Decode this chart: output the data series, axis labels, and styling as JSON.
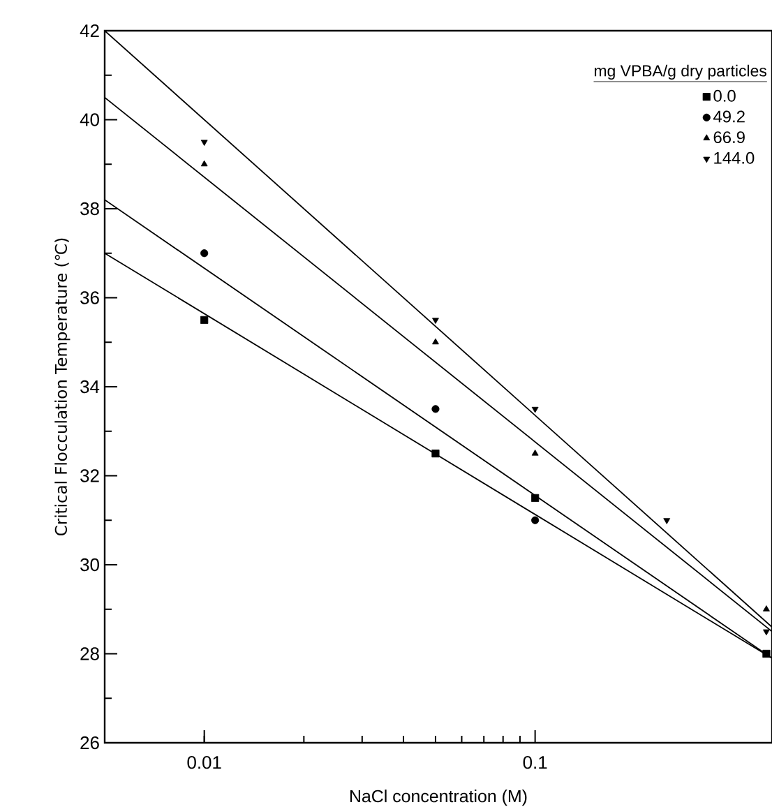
{
  "chart_data": {
    "type": "scatter",
    "xlabel": "NaCl concentration (M)",
    "ylabel": "Critical Flocculation Temperature (℃)",
    "legend_title": "mg VPBA/g dry particles",
    "log": "x",
    "xlim": [
      0.005,
      0.52
    ],
    "ylim": [
      26,
      42
    ],
    "xticks": [
      0.01,
      0.1
    ],
    "yticks": [
      26,
      28,
      30,
      32,
      34,
      36,
      38,
      40,
      42
    ],
    "grid": false,
    "legend": "top right",
    "series": [
      {
        "name": "0.0",
        "color": "#000000",
        "marker": "square",
        "x": [
          0.01,
          0.05,
          0.1,
          0.5
        ],
        "values": [
          35.5,
          32.5,
          31.5,
          28.0
        ]
      },
      {
        "name": "49.2",
        "color": "#000000",
        "marker": "circle",
        "x": [
          0.01,
          0.05,
          0.1
        ],
        "values": [
          37.0,
          33.5,
          31.0
        ]
      },
      {
        "name": "66.9",
        "color": "#000000",
        "marker": "triangle",
        "x": [
          0.01,
          0.05,
          0.1,
          0.5
        ],
        "values": [
          39.0,
          35.0,
          32.5,
          29.0
        ]
      },
      {
        "name": "144.0",
        "color": "#000000",
        "marker": "triangle-down",
        "x": [
          0.01,
          0.05,
          0.1,
          0.25,
          0.5
        ],
        "values": [
          39.5,
          35.5,
          33.5,
          31.0,
          28.5
        ]
      },
      {
        "type": "line",
        "color": "#000000",
        "marker": "none",
        "x": [
          0.005,
          0.52
        ],
        "values": [
          37.0,
          27.9
        ]
      },
      {
        "type": "line",
        "color": "#000000",
        "marker": "none",
        "x": [
          0.005,
          0.52
        ],
        "values": [
          38.2,
          27.9
        ]
      },
      {
        "type": "line",
        "color": "#000000",
        "marker": "none",
        "x": [
          0.005,
          0.52
        ],
        "values": [
          40.5,
          28.5
        ]
      },
      {
        "type": "line",
        "color": "#000000",
        "marker": "none",
        "x": [
          0.005,
          0.52
        ],
        "values": [
          42.0,
          28.6
        ]
      }
    ]
  }
}
